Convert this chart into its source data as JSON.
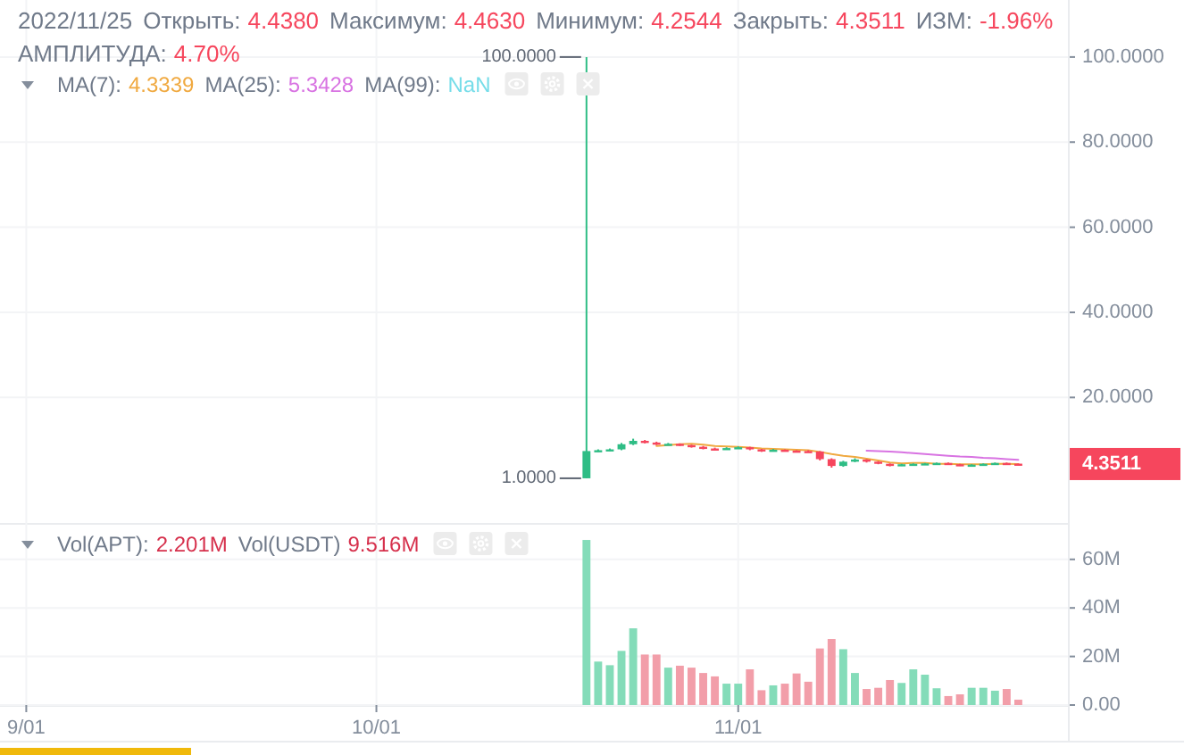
{
  "chart_data": [
    {
      "type": "candlestick",
      "x": [
        "2022-10-19",
        "2022-10-20",
        "2022-10-21",
        "2022-10-22",
        "2022-10-23",
        "2022-10-24",
        "2022-10-25",
        "2022-10-26",
        "2022-10-27",
        "2022-10-28",
        "2022-10-29",
        "2022-10-30",
        "2022-10-31",
        "2022-11-01",
        "2022-11-02",
        "2022-11-03",
        "2022-11-04",
        "2022-11-05",
        "2022-11-06",
        "2022-11-07",
        "2022-11-08",
        "2022-11-09",
        "2022-11-10",
        "2022-11-11",
        "2022-11-12",
        "2022-11-13",
        "2022-11-14",
        "2022-11-15",
        "2022-11-16",
        "2022-11-17",
        "2022-11-18",
        "2022-11-19",
        "2022-11-20",
        "2022-11-21",
        "2022-11-22",
        "2022-11-23",
        "2022-11-24",
        "2022-11-25"
      ],
      "ohlc": [
        [
          1.0,
          100.0,
          1.0,
          7.4
        ],
        [
          7.4,
          7.8,
          7.2,
          7.6
        ],
        [
          7.6,
          8.0,
          7.4,
          7.8
        ],
        [
          7.8,
          9.3,
          7.6,
          9.0
        ],
        [
          9.0,
          10.3,
          8.8,
          9.8
        ],
        [
          9.8,
          10.0,
          9.2,
          9.4
        ],
        [
          9.4,
          9.6,
          8.8,
          9.0
        ],
        [
          9.0,
          9.3,
          8.8,
          9.1
        ],
        [
          9.1,
          9.2,
          8.6,
          8.8
        ],
        [
          8.8,
          8.9,
          8.2,
          8.4
        ],
        [
          8.4,
          8.6,
          7.8,
          8.0
        ],
        [
          8.0,
          8.2,
          7.6,
          7.8
        ],
        [
          7.8,
          8.3,
          7.7,
          8.1
        ],
        [
          8.1,
          8.5,
          8.0,
          8.3
        ],
        [
          8.3,
          8.4,
          7.6,
          7.8
        ],
        [
          7.8,
          7.9,
          7.2,
          7.4
        ],
        [
          7.4,
          7.9,
          7.3,
          7.7
        ],
        [
          7.7,
          7.8,
          7.3,
          7.5
        ],
        [
          7.5,
          7.6,
          7.2,
          7.4
        ],
        [
          7.4,
          7.6,
          7.2,
          7.3
        ],
        [
          7.3,
          7.4,
          5.2,
          5.5
        ],
        [
          5.5,
          5.7,
          3.5,
          3.9
        ],
        [
          3.9,
          5.1,
          3.7,
          4.9
        ],
        [
          4.9,
          5.7,
          4.8,
          5.4
        ],
        [
          5.4,
          5.5,
          4.7,
          4.9
        ],
        [
          4.9,
          5.0,
          4.3,
          4.4
        ],
        [
          4.4,
          4.5,
          3.8,
          4.0
        ],
        [
          4.0,
          4.4,
          3.9,
          4.3
        ],
        [
          4.3,
          4.5,
          4.2,
          4.4
        ],
        [
          4.4,
          4.6,
          4.3,
          4.5
        ],
        [
          4.5,
          4.7,
          4.4,
          4.6
        ],
        [
          4.6,
          4.7,
          4.2,
          4.3
        ],
        [
          4.3,
          4.4,
          3.9,
          4.0
        ],
        [
          4.0,
          4.3,
          3.9,
          4.2
        ],
        [
          4.2,
          4.5,
          4.1,
          4.4
        ],
        [
          4.4,
          4.7,
          4.3,
          4.6
        ],
        [
          4.6,
          4.7,
          4.3,
          4.438
        ],
        [
          4.438,
          4.463,
          4.2544,
          4.3511
        ]
      ],
      "colors": [
        "#2ebd85",
        "#2ebd85",
        "#2ebd85",
        "#2ebd85",
        "#2ebd85",
        "#f6465d",
        "#f6465d",
        "#2ebd85",
        "#f6465d",
        "#f6465d",
        "#f6465d",
        "#f6465d",
        "#2ebd85",
        "#2ebd85",
        "#f6465d",
        "#f6465d",
        "#2ebd85",
        "#f6465d",
        "#f6465d",
        "#f6465d",
        "#f6465d",
        "#f6465d",
        "#2ebd85",
        "#2ebd85",
        "#f6465d",
        "#f6465d",
        "#f6465d",
        "#2ebd85",
        "#2ebd85",
        "#2ebd85",
        "#2ebd85",
        "#f6465d",
        "#f6465d",
        "#2ebd85",
        "#2ebd85",
        "#2ebd85",
        "#f6465d",
        "#f6465d"
      ],
      "series": [
        {
          "type": "line",
          "color": "#f0a940",
          "values": [
            null,
            null,
            null,
            null,
            null,
            null,
            8.6,
            8.8,
            9.0,
            9.1,
            8.9,
            8.6,
            8.5,
            8.4,
            8.2,
            8.0,
            7.9,
            7.8,
            7.7,
            7.6,
            7.2,
            6.7,
            6.3,
            6.0,
            5.6,
            5.2,
            4.7,
            4.5,
            4.6,
            4.6,
            4.4,
            4.4,
            4.3,
            4.3,
            4.3,
            4.4,
            4.4,
            4.3339
          ]
        },
        {
          "type": "line",
          "color": "#d873e2",
          "values": [
            null,
            null,
            null,
            null,
            null,
            null,
            null,
            null,
            null,
            null,
            null,
            null,
            null,
            null,
            null,
            null,
            null,
            null,
            null,
            null,
            null,
            null,
            null,
            null,
            7.5,
            7.4,
            7.3,
            7.1,
            6.9,
            6.7,
            6.5,
            6.3,
            6.1,
            6.0,
            5.8,
            5.7,
            5.5,
            5.3428
          ]
        }
      ],
      "xlim": [
        "2022-08-29T18:00",
        "2022-11-29T06:00"
      ],
      "xticks": [
        {
          "value": "2022-09-01",
          "label": null
        },
        {
          "value": "2022-10-01",
          "label": null
        },
        {
          "value": "2022-11-01",
          "label": null
        }
      ],
      "ylim": [
        -9.5,
        113.4
      ],
      "yticks": [
        {
          "value": 20,
          "label": "20.0000"
        },
        {
          "value": 40,
          "label": "40.0000"
        },
        {
          "value": 60,
          "label": "60.0000"
        },
        {
          "value": 80,
          "label": "80.0000"
        },
        {
          "value": 100,
          "label": "100.0000"
        }
      ],
      "tick_labels": "y",
      "grid": true,
      "annotations": [
        "2022/11/25",
        "Открыть: 4.4380",
        "Максимум: 4.4630",
        "Минимум: 4.2544",
        "Закрыть: 4.3511",
        "ИЗМ: -1.96%",
        "АМПЛИТУДА: 4.70%",
        "MA(7): 4.3339",
        "MA(25): 5.3428",
        "MA(99): NaN",
        "4.3511",
        {
          "text": "100.0000",
          "x": "2022-10-19",
          "y": 100
        },
        {
          "text": "1.0000",
          "x": "2022-10-19",
          "y": 1
        }
      ]
    },
    {
      "type": "bar",
      "x": [
        "2022-10-19",
        "2022-10-20",
        "2022-10-21",
        "2022-10-22",
        "2022-10-23",
        "2022-10-24",
        "2022-10-25",
        "2022-10-26",
        "2022-10-27",
        "2022-10-28",
        "2022-10-29",
        "2022-10-30",
        "2022-10-31",
        "2022-11-01",
        "2022-11-02",
        "2022-11-03",
        "2022-11-04",
        "2022-11-05",
        "2022-11-06",
        "2022-11-07",
        "2022-11-08",
        "2022-11-09",
        "2022-11-10",
        "2022-11-11",
        "2022-11-12",
        "2022-11-13",
        "2022-11-14",
        "2022-11-15",
        "2022-11-16",
        "2022-11-17",
        "2022-11-18",
        "2022-11-19",
        "2022-11-20",
        "2022-11-21",
        "2022-11-22",
        "2022-11-23",
        "2022-11-24",
        "2022-11-25"
      ],
      "values": [
        68,
        17.9,
        16.4,
        22.3,
        31.6,
        20.8,
        20.8,
        15.4,
        16.2,
        15.4,
        13.2,
        11.8,
        8.8,
        8.8,
        14.7,
        6.1,
        8.1,
        8.8,
        13,
        9.6,
        23.3,
        27.2,
        23,
        13.2,
        6.6,
        7.1,
        10.3,
        9.1,
        14.7,
        12.5,
        6.9,
        3.7,
        4.4,
        7.1,
        7.1,
        5.9,
        6.6,
        2.2
      ],
      "colors": [
        "#84dcb9",
        "#84dcb9",
        "#84dcb9",
        "#84dcb9",
        "#84dcb9",
        "#f29ea9",
        "#f29ea9",
        "#84dcb9",
        "#f29ea9",
        "#f29ea9",
        "#f29ea9",
        "#f29ea9",
        "#84dcb9",
        "#84dcb9",
        "#f29ea9",
        "#f29ea9",
        "#84dcb9",
        "#f29ea9",
        "#f29ea9",
        "#f29ea9",
        "#f29ea9",
        "#f29ea9",
        "#84dcb9",
        "#84dcb9",
        "#f29ea9",
        "#f29ea9",
        "#f29ea9",
        "#84dcb9",
        "#84dcb9",
        "#84dcb9",
        "#84dcb9",
        "#f29ea9",
        "#f29ea9",
        "#84dcb9",
        "#84dcb9",
        "#84dcb9",
        "#f29ea9",
        "#f29ea9"
      ],
      "xlim": [
        "2022-08-29T18:00",
        "2022-11-29T06:00"
      ],
      "xticks": [
        {
          "value": "2022-09-01",
          "label": "9/01"
        },
        {
          "value": "2022-10-01",
          "label": "10/01"
        },
        {
          "value": "2022-11-01",
          "label": "11/01"
        }
      ],
      "ylim": [
        0,
        75
      ],
      "yticks": [
        {
          "value": 0,
          "label": "0.00"
        },
        {
          "value": 20,
          "label": "20M"
        },
        {
          "value": 40,
          "label": "40M"
        },
        {
          "value": 60,
          "label": "60M"
        }
      ],
      "grid": true,
      "annotations": [
        "Vol(APT): 2.201M",
        "Vol(USDT) 9.516M"
      ]
    }
  ]
}
